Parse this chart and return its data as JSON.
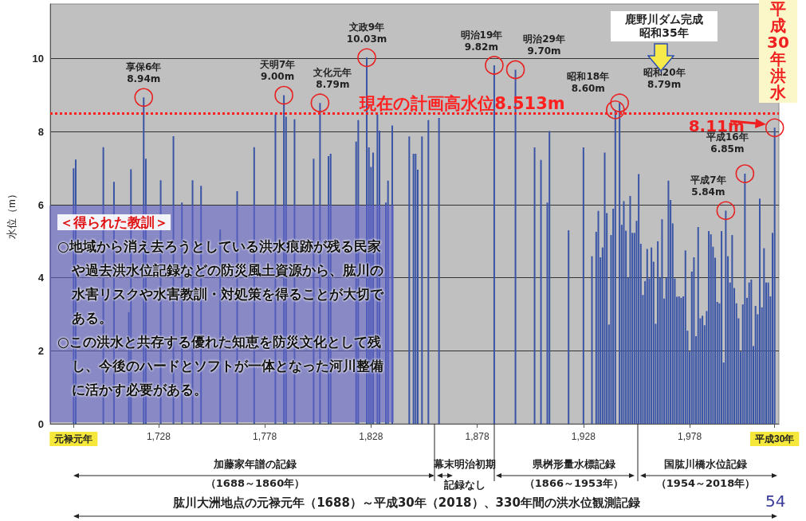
{
  "chart_data": {
    "type": "bar",
    "title": "肱川大洲地点の元禄元年（1688）～平成30年（2018）、330年間の洪水位観測記録",
    "ylabel": "水位（m）",
    "xlim": [
      1677,
      2020
    ],
    "xticks": [
      {
        "value": 1688,
        "label": "元禄元年"
      },
      {
        "value": 1728,
        "label": "1,728"
      },
      {
        "value": 1778,
        "label": "1,778"
      },
      {
        "value": 1828,
        "label": "1,828"
      },
      {
        "value": 1878,
        "label": "1,878"
      },
      {
        "value": 1928,
        "label": "1,928"
      },
      {
        "value": 1978,
        "label": "1,978"
      },
      {
        "value": 2018,
        "label": "平成30年"
      }
    ],
    "ylim": [
      0,
      11.5
    ],
    "yticks": [
      0,
      2,
      4,
      6,
      8,
      10
    ],
    "grid": "y",
    "series": [
      {
        "color": "#3a54a6",
        "x": [
          1688,
          1689,
          1702,
          1707,
          1714,
          1715,
          1721,
          1722,
          1729,
          1735,
          1739,
          1744,
          1748,
          1757,
          1765,
          1773,
          1783,
          1787,
          1788,
          1792,
          1801,
          1804,
          1808,
          1809,
          1821,
          1822,
          1826,
          1827,
          1828,
          1829,
          1831,
          1832,
          1835,
          1836,
          1838,
          1846,
          1848,
          1849,
          1850,
          1852,
          1855,
          1860,
          1886,
          1896,
          1905,
          1908,
          1911,
          1912,
          1921,
          1928,
          1932,
          1934,
          1935,
          1936,
          1937,
          1938,
          1939,
          1940,
          1941,
          1942,
          1943,
          1945,
          1946,
          1947,
          1948,
          1949,
          1950,
          1951,
          1952,
          1953,
          1954,
          1955,
          1956,
          1957,
          1958,
          1959,
          1960,
          1961,
          1962,
          1963,
          1964,
          1965,
          1966,
          1967,
          1968,
          1969,
          1970,
          1971,
          1972,
          1973,
          1974,
          1975,
          1976,
          1977,
          1978,
          1979,
          1980,
          1981,
          1982,
          1983,
          1984,
          1985,
          1986,
          1987,
          1988,
          1989,
          1990,
          1991,
          1992,
          1993,
          1994,
          1995,
          1996,
          1997,
          1998,
          1999,
          2000,
          2001,
          2002,
          2003,
          2004,
          2005,
          2006,
          2007,
          2008,
          2009,
          2010,
          2011,
          2012,
          2013,
          2014,
          2015,
          2016,
          2017,
          2018
        ],
        "values": [
          7.0,
          7.24,
          7.58,
          6.63,
          3.06,
          6.97,
          8.94,
          7.26,
          6.67,
          7.88,
          6.06,
          6.67,
          6.52,
          5.32,
          6.37,
          7.58,
          8.47,
          9.0,
          8.41,
          8.34,
          7.26,
          8.79,
          7.33,
          7.4,
          7.73,
          8.32,
          10.03,
          7.57,
          7.04,
          7.43,
          8.47,
          8.03,
          6.06,
          6.66,
          8.17,
          7.87,
          7.4,
          7.4,
          6.96,
          7.87,
          8.32,
          8.38,
          9.82,
          9.7,
          7.57,
          7.23,
          6.06,
          8.02,
          5.3,
          7.57,
          4.59,
          5.26,
          5.83,
          4.56,
          4.83,
          7.43,
          5.77,
          2.72,
          5.17,
          5.89,
          8.6,
          8.79,
          5.45,
          6.1,
          5.29,
          4.0,
          6.24,
          5.23,
          5.23,
          5.56,
          6.84,
          4.93,
          3.53,
          3.91,
          4.79,
          3.98,
          4.83,
          4.44,
          2.74,
          5.0,
          4.0,
          5.6,
          3.43,
          4.0,
          6.66,
          6.13,
          5.49,
          3.98,
          3.48,
          3.49,
          3.45,
          3.49,
          4.75,
          2.55,
          1.98,
          4.17,
          4.56,
          2.4,
          5.39,
          2.89,
          2.96,
          2.7,
          3.09,
          5.28,
          5.19,
          4.85,
          4.55,
          3.34,
          3.3,
          5.28,
          1.68,
          5.84,
          4.59,
          3.87,
          5.17,
          3.72,
          3.3,
          2.89,
          1.98,
          3.27,
          6.85,
          3.45,
          3.87,
          3.95,
          2.13,
          3.23,
          3.0,
          6.17,
          3.19,
          4.81,
          3.87,
          3.87,
          3.49,
          5.23,
          8.11
        ]
      }
    ],
    "ref_lines": [
      {
        "axis": "y",
        "value": 8.513,
        "label": "現在の計画高水位8.513m",
        "color": "#ff2020",
        "line_style": "dotted"
      }
    ],
    "annotations": [
      {
        "text": "享保6年\n8.94m",
        "x": 1721,
        "y": 8.94
      },
      {
        "text": "天明7年\n9.00m",
        "x": 1787,
        "y": 9.0
      },
      {
        "text": "文化元年\n8.79m",
        "x": 1804,
        "y": 8.79
      },
      {
        "text": "文政9年\n10.03m",
        "x": 1826,
        "y": 10.03
      },
      {
        "text": "明治19年\n9.82m",
        "x": 1886,
        "y": 9.82
      },
      {
        "text": "明治29年\n9.70m",
        "x": 1896,
        "y": 9.7
      },
      {
        "text": "昭和18年\n8.60m",
        "x": 1943,
        "y": 8.6
      },
      {
        "text": "昭和20年\n8.79m",
        "x": 1945,
        "y": 8.79
      },
      {
        "text": "平成7年\n5.84m",
        "x": 1995,
        "y": 5.84
      },
      {
        "text": "平成16年\n6.85m",
        "x": 2004,
        "y": 6.85
      },
      {
        "text": "8.11m",
        "x": 2018,
        "y": 8.11
      },
      "鹿野川ダム完成昭和35年",
      "平成30年洪水",
      "＜得られた教訓＞",
      "○地域から消え去ろうとしている洪水痕跡が残る民家や過去洪水位記録などの防災風土資源から、肱川の水害リスクや水害教訓・対処策を得ることが大切である。",
      "○この洪水と共存する優れた知恵を防災文化として残し、今後のハードとソフトが一体となった河川整備に活かす必要がある。",
      "加藤家年譜の記録",
      "（1688～1860年）",
      "幕末明治初期",
      "記録なし",
      "県桝形量水標記録",
      "（1866～1953年）",
      "国肱川橋水位記録",
      "（1954～2018年）",
      "54"
    ]
  }
}
